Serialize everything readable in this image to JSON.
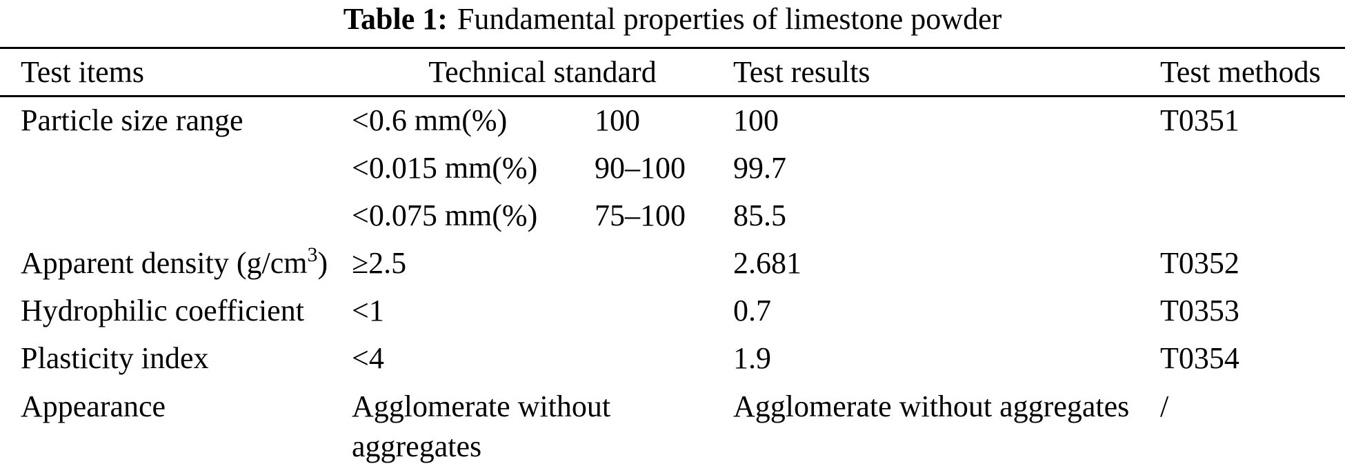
{
  "caption": {
    "label": "Table 1:",
    "text": "Fundamental properties of limestone powder"
  },
  "columns": {
    "test_items": "Test items",
    "technical_standard": "Technical standard",
    "test_results": "Test results",
    "test_methods": "Test methods"
  },
  "rows": {
    "particle_size": {
      "item": "Particle size range",
      "method": "T0351",
      "entries": [
        {
          "criterion": "<0.6 mm(%)",
          "standard": "100",
          "result": "100"
        },
        {
          "criterion": "<0.015 mm(%)",
          "standard": "90–100",
          "result": "99.7"
        },
        {
          "criterion": "<0.075 mm(%)",
          "standard": "75–100",
          "result": "85.5"
        }
      ]
    },
    "apparent_density": {
      "item_prefix": "Apparent density (g/cm",
      "item_exponent": "3",
      "item_suffix": ")",
      "standard": "≥2.5",
      "result": "2.681",
      "method": "T0352"
    },
    "hydrophilic_coefficient": {
      "item": "Hydrophilic coefficient",
      "standard": "<1",
      "result": "0.7",
      "method": "T0353"
    },
    "plasticity_index": {
      "item": "Plasticity index",
      "standard": "<4",
      "result": "1.9",
      "method": "T0354"
    },
    "appearance": {
      "item": "Appearance",
      "standard": "Agglomerate without aggregates",
      "result": "Agglomerate without aggregates",
      "method": "/"
    }
  },
  "colors": {
    "text": "#000000",
    "background": "#ffffff",
    "rule": "#000000"
  }
}
